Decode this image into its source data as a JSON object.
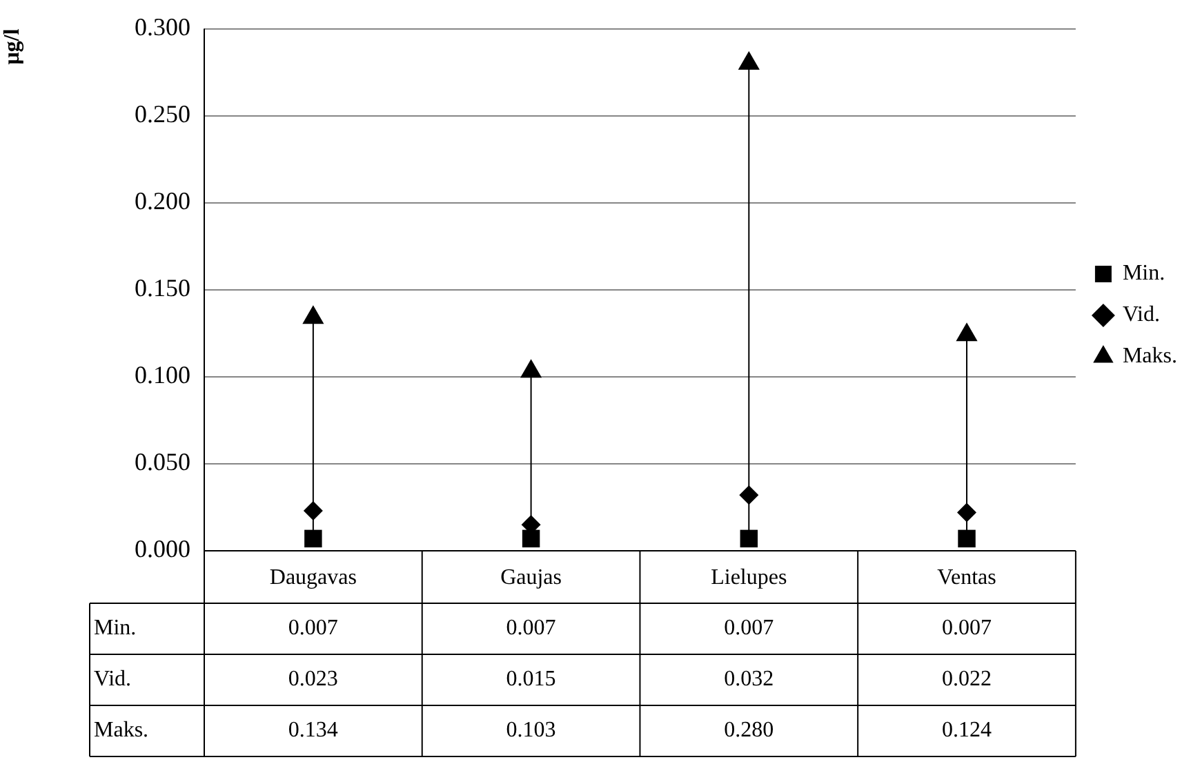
{
  "chart_data": {
    "type": "scatter",
    "ylabel": "µg/l",
    "categories": [
      "Daugavas",
      "Gaujas",
      "Lielupes",
      "Ventas"
    ],
    "series": [
      {
        "name": "Min.",
        "color": "#000000",
        "marker": "square",
        "values": [
          0.007,
          0.007,
          0.007,
          0.007
        ],
        "value_labels": [
          "0.007",
          "0.007",
          "0.007",
          "0.007"
        ]
      },
      {
        "name": "Vid.",
        "color": "#000000",
        "marker": "diamond",
        "values": [
          0.023,
          0.015,
          0.032,
          0.022
        ],
        "value_labels": [
          "0.023",
          "0.015",
          "0.032",
          "0.022"
        ]
      },
      {
        "name": "Maks.",
        "color": "#000000",
        "marker": "triangle",
        "values": [
          0.134,
          0.103,
          0.28,
          0.124
        ],
        "value_labels": [
          "0.134",
          "0.103",
          "0.280",
          "0.124"
        ]
      }
    ],
    "ylim": [
      0,
      0.3
    ],
    "yticks": [
      {
        "value": 0,
        "label": "0.000"
      },
      {
        "value": 0.05,
        "label": "0.050"
      },
      {
        "value": 0.1,
        "label": "0.100"
      },
      {
        "value": 0.15,
        "label": "0.150"
      },
      {
        "value": 0.2,
        "label": "0.200"
      },
      {
        "value": 0.25,
        "label": "0.250"
      },
      {
        "value": 0.3,
        "label": "0.300"
      }
    ],
    "grid": "y",
    "legend": "right"
  }
}
